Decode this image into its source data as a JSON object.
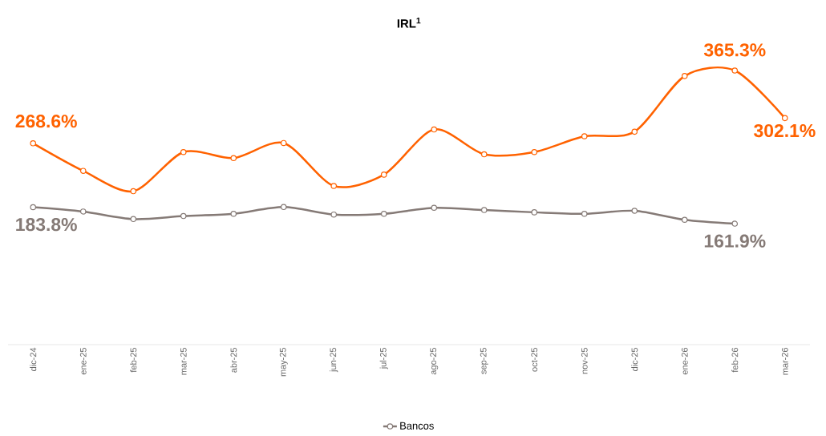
{
  "chart_data": {
    "type": "line",
    "title": "IRL$^{1}$",
    "categories": [
      "dic-24",
      "ene-25",
      "feb-25",
      "mar-25",
      "abr-25",
      "may-25",
      "jun-25",
      "jul-25",
      "ago-25",
      "sep-25",
      "oct-25",
      "nov-25",
      "dic-25",
      "ene-26",
      "feb-26",
      "mar-26"
    ],
    "series": [
      {
        "color": "#ff6200",
        "values": [
          268.6,
          232,
          205,
          257,
          249,
          269,
          212,
          227,
          287,
          254,
          257,
          278,
          284,
          358,
          365.3,
          302.1
        ],
        "value_labels": [
          "268.6%",
          null,
          null,
          null,
          null,
          null,
          null,
          null,
          null,
          null,
          null,
          null,
          null,
          null,
          "365.3%",
          "302.1%"
        ]
      },
      {
        "name": "Bancos",
        "color": "#857a76",
        "values": [
          183.8,
          178,
          168,
          172,
          175,
          184,
          174,
          175,
          183,
          180,
          177,
          175,
          179,
          167,
          161.9,
          null
        ],
        "value_labels": [
          "183.8%",
          null,
          null,
          null,
          null,
          null,
          null,
          null,
          null,
          null,
          null,
          null,
          null,
          null,
          "161.9%",
          null
        ]
      }
    ],
    "tick_labels": "x",
    "marker": "circle",
    "legend": "bottom",
    "grid": false
  }
}
